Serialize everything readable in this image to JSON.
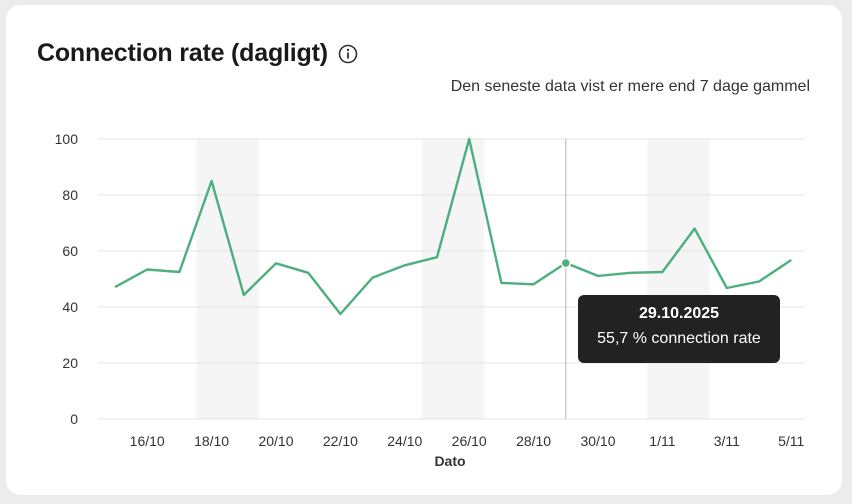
{
  "header": {
    "title": "Connection rate (dagligt)",
    "info_icon": "info-icon",
    "notice": "Den seneste data vist er mere end 7 dage gammel"
  },
  "tooltip": {
    "date": "29.10.2025",
    "value_text": "55,7 % connection rate"
  },
  "colors": {
    "line": "#4caf7d",
    "weekend_band": "#f5f5f5",
    "grid": "#e3e3e3",
    "tooltip_bg": "#222222"
  },
  "chart_data": {
    "type": "line",
    "xlabel": "Dato",
    "ylabel": "",
    "ylim": [
      0,
      100
    ],
    "yticks": [
      0,
      20,
      40,
      60,
      80,
      100
    ],
    "x": [
      "15/10",
      "16/10",
      "17/10",
      "18/10",
      "19/10",
      "20/10",
      "21/10",
      "22/10",
      "23/10",
      "24/10",
      "25/10",
      "26/10",
      "27/10",
      "28/10",
      "29/10",
      "30/10",
      "31/10",
      "1/11",
      "2/11",
      "3/11",
      "4/11",
      "5/11"
    ],
    "xtick_labels": [
      "16/10",
      "18/10",
      "20/10",
      "22/10",
      "24/10",
      "26/10",
      "28/10",
      "30/10",
      "1/11",
      "3/11",
      "5/11"
    ],
    "series": [
      {
        "values": [
          47.1,
          53.4,
          52.5,
          85.0,
          44.3,
          55.6,
          52.2,
          37.5,
          50.5,
          54.9,
          57.8,
          100.0,
          48.6,
          48.1,
          55.7,
          51.1,
          52.2,
          52.5,
          68.0,
          46.8,
          49.1,
          56.8
        ]
      }
    ],
    "highlighted_point": "29/10",
    "weekend_bands": [
      [
        "18/10",
        "19/10"
      ],
      [
        "25/10",
        "26/10"
      ],
      [
        "1/11",
        "2/11"
      ]
    ],
    "grid": true
  }
}
